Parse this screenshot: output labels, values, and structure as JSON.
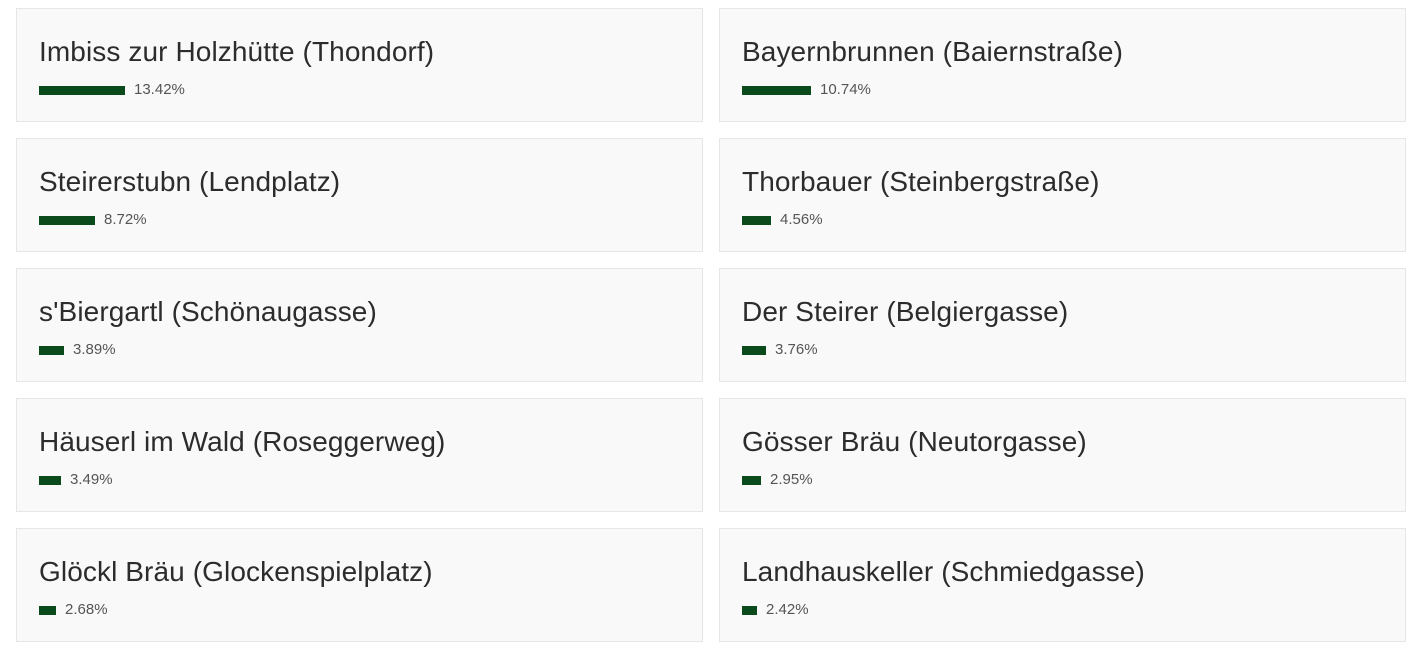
{
  "items": [
    {
      "name": "Imbiss zur Holzhütte (Thondorf)",
      "percent_label": "13.42%",
      "value": 13.42
    },
    {
      "name": "Bayernbrunnen (Baiernstraße)",
      "percent_label": "10.74%",
      "value": 10.74
    },
    {
      "name": "Steirerstubn (Lendplatz)",
      "percent_label": "8.72%",
      "value": 8.72
    },
    {
      "name": "Thorbauer (Steinbergstraße)",
      "percent_label": "4.56%",
      "value": 4.56
    },
    {
      "name": "s'Biergartl (Schönaugasse)",
      "percent_label": "3.89%",
      "value": 3.89
    },
    {
      "name": "Der Steirer (Belgiergasse)",
      "percent_label": "3.76%",
      "value": 3.76
    },
    {
      "name": "Häuserl im Wald (Roseggerweg)",
      "percent_label": "3.49%",
      "value": 3.49
    },
    {
      "name": "Gösser Bräu (Neutorgasse)",
      "percent_label": "2.95%",
      "value": 2.95
    },
    {
      "name": "Glöckl Bräu (Glockenspielplatz)",
      "percent_label": "2.68%",
      "value": 2.68
    },
    {
      "name": "Landhauskeller (Schmiedgasse)",
      "percent_label": "2.42%",
      "value": 2.42
    }
  ],
  "colors": {
    "bar": "#0b4a1a",
    "card_background": "#f9f9f9",
    "card_border": "#e6e6e6",
    "title_text": "#2c2c2c",
    "percent_text": "#555555"
  }
}
